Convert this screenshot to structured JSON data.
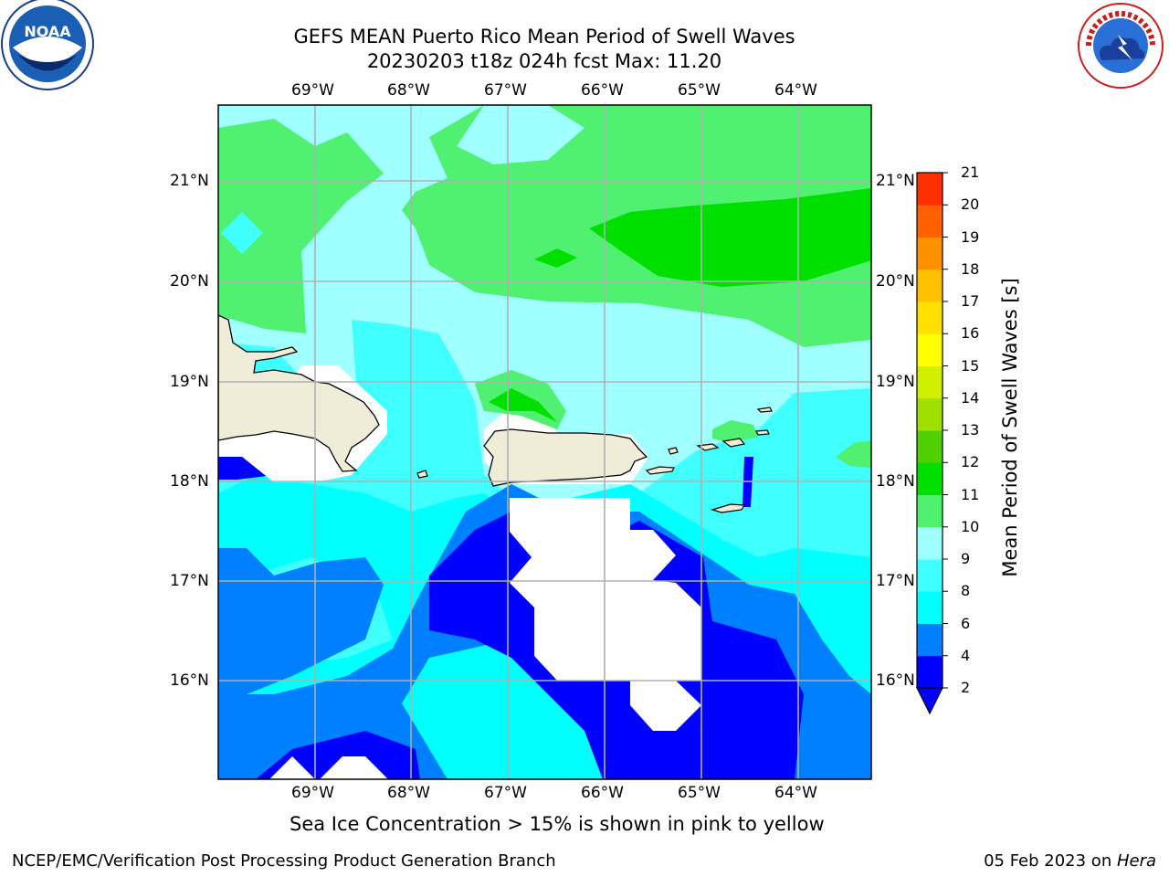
{
  "header": {
    "title_line1": "GEFS MEAN Puerto Rico Mean Period of Swell Waves",
    "title_line2": "20230203 t18z 024h fcst   Max: 11.20"
  },
  "logos": {
    "left": {
      "icon": "noaa-logo-icon",
      "text": "NOAA"
    },
    "right": {
      "icon": "nws-logo-icon",
      "text": "NATIONAL WEATHER SERVICE"
    }
  },
  "map": {
    "lon_labels": [
      "69°W",
      "68°W",
      "67°W",
      "66°W",
      "65°W",
      "64°W"
    ],
    "lat_labels": [
      "21°N",
      "20°N",
      "19°N",
      "18°N",
      "17°N",
      "16°N"
    ],
    "land_color": "#efedd8",
    "grid_color": "#b0b0b0"
  },
  "colorbar": {
    "title": "Mean Period of Swell Waves [s]",
    "levels": [
      "2",
      "4",
      "6",
      "8",
      "9",
      "10",
      "11",
      "12",
      "13",
      "14",
      "15",
      "16",
      "17",
      "18",
      "19",
      "20",
      "21"
    ],
    "colors": [
      "#0000ff",
      "#0080ff",
      "#00ffff",
      "#40ffff",
      "#a0ffff",
      "#50f070",
      "#00e000",
      "#50d000",
      "#a0e000",
      "#d0f000",
      "#ffff00",
      "#ffe000",
      "#ffc000",
      "#ff9000",
      "#ff6000",
      "#ff3000",
      "#ff0000"
    ],
    "extend_color": "#0000ff"
  },
  "caption": "Sea Ice Concentration > 15% is shown in pink to yellow",
  "footer": {
    "left": "NCEP/EMC/Verification Post Processing Product Generation Branch",
    "right_prefix": "05 Feb 2023 on ",
    "right_host": "Hera"
  }
}
